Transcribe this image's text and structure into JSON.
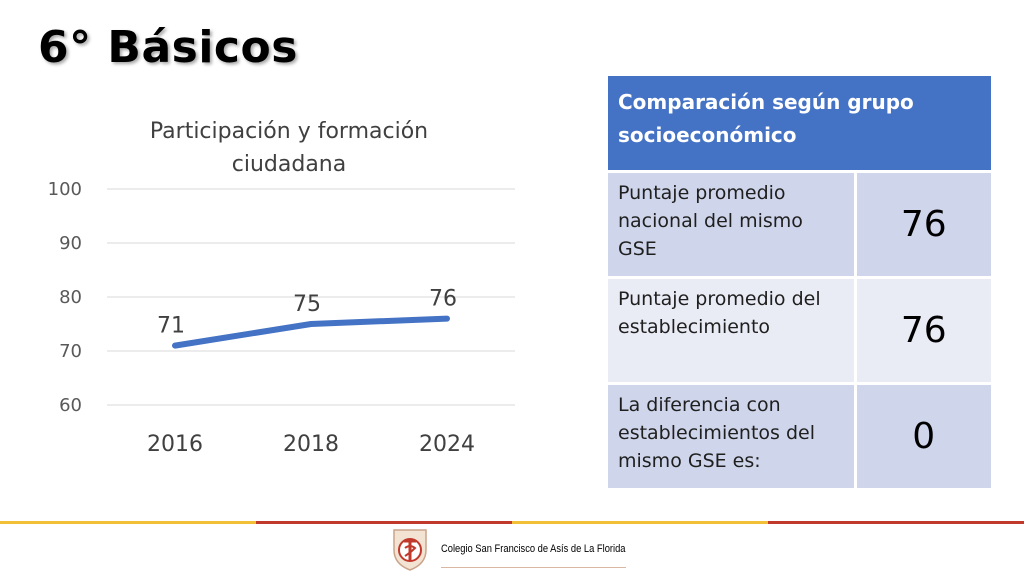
{
  "slide": {
    "title": "6° Básicos"
  },
  "chart_data": {
    "type": "line",
    "title": "Participación y formación ciudadana",
    "title_lines": [
      "Participación y formación",
      "ciudadana"
    ],
    "categories": [
      "2016",
      "2018",
      "2024"
    ],
    "series": [
      {
        "values": [
          71,
          75,
          76
        ],
        "color": "#4472c4"
      }
    ],
    "yticks": [
      100,
      90,
      80,
      70,
      60
    ],
    "ylim": [
      60,
      100
    ],
    "grid": true,
    "legend": "none"
  },
  "table": {
    "header": "Comparación según grupo socioeconómico",
    "rows": [
      {
        "label": "Puntaje promedio nacional del mismo GSE",
        "value": "76"
      },
      {
        "label": "Puntaje promedio del establecimiento",
        "value": "76"
      },
      {
        "label": "La diferencia con establecimientos del mismo GSE es:",
        "value": "0"
      }
    ]
  },
  "footer": {
    "school_name": "Colegio San Francisco de Asís de La Florida",
    "line_colors": [
      "#f2c037",
      "#c0392b",
      "#f2c037",
      "#c0392b"
    ]
  }
}
